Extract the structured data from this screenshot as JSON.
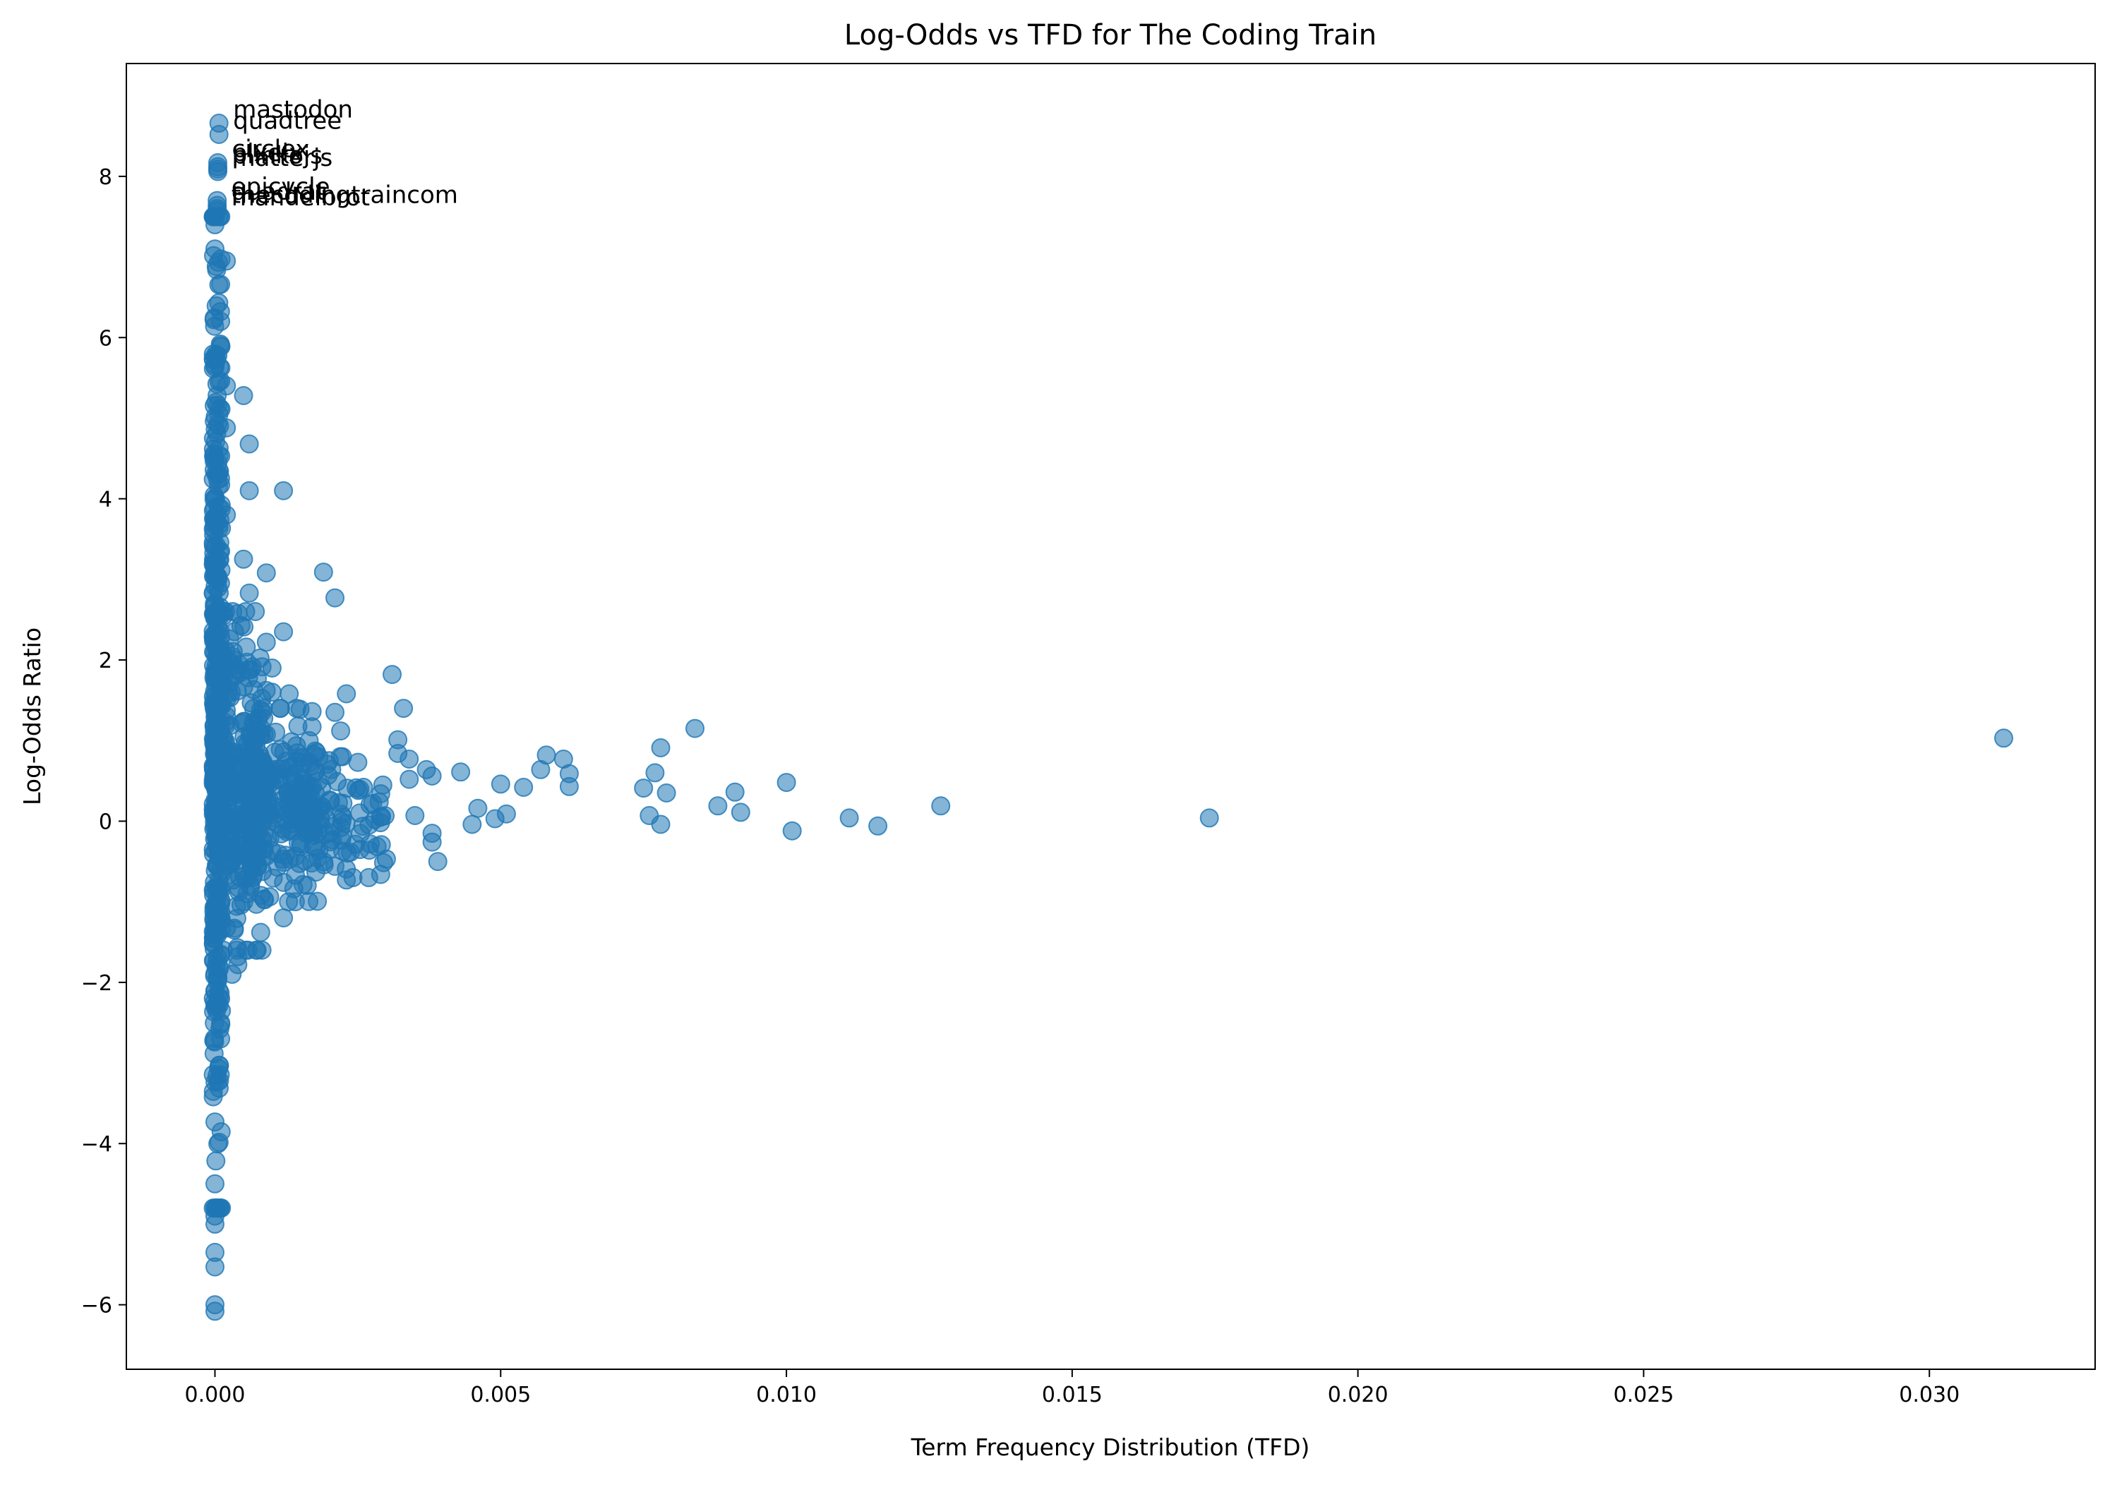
{
  "chart_data": {
    "type": "scatter",
    "title": "Log-Odds vs TFD for The Coding Train",
    "xlabel": "Term Frequency Distribution (TFD)",
    "ylabel": "Log-Odds Ratio",
    "xlim": [
      -0.00155,
      0.0329
    ],
    "ylim": [
      -6.8,
      9.4
    ],
    "xticks": [
      0.0,
      0.005,
      0.01,
      0.015,
      0.02,
      0.025,
      0.03
    ],
    "xtick_labels": [
      "0.000",
      "0.005",
      "0.010",
      "0.015",
      "0.020",
      "0.025",
      "0.030"
    ],
    "yticks": [
      -6,
      -4,
      -2,
      0,
      2,
      4,
      6,
      8
    ],
    "ytick_labels": [
      "−6",
      "−4",
      "−2",
      "0",
      "2",
      "4",
      "6",
      "8"
    ],
    "grid": false,
    "marker_color": "#1f77b4",
    "marker_alpha": 0.55,
    "annotations": [
      {
        "text": "mastodon",
        "x": 7e-05,
        "y": 8.66
      },
      {
        "text": "quadtree",
        "x": 7e-05,
        "y": 8.52
      },
      {
        "text": "circlex",
        "x": 5e-05,
        "y": 8.17
      },
      {
        "text": "pixelx",
        "x": 5e-05,
        "y": 8.12
      },
      {
        "text": "plinkojs",
        "x": 5e-05,
        "y": 8.09
      },
      {
        "text": "matterjs",
        "x": 5e-05,
        "y": 8.06
      },
      {
        "text": "epicycle",
        "x": 4e-05,
        "y": 7.7
      },
      {
        "text": "quadrat",
        "x": 4e-05,
        "y": 7.64
      },
      {
        "text": "thecodingtraincom",
        "x": 4e-05,
        "y": 7.6
      },
      {
        "text": "mandelbrot",
        "x": 4e-05,
        "y": 7.57
      }
    ],
    "notable_points": [
      {
        "x": 0.0313,
        "y": 1.03
      },
      {
        "x": 0.0174,
        "y": 0.04
      },
      {
        "x": 0.0127,
        "y": 0.19
      },
      {
        "x": 0.0116,
        "y": -0.06
      },
      {
        "x": 0.0111,
        "y": 0.04
      },
      {
        "x": 0.0101,
        "y": -0.12
      },
      {
        "x": 0.01,
        "y": 0.48
      },
      {
        "x": 0.0092,
        "y": 0.11
      },
      {
        "x": 0.0091,
        "y": 0.36
      },
      {
        "x": 0.0088,
        "y": 0.19
      },
      {
        "x": 0.0084,
        "y": 1.15
      },
      {
        "x": 0.0079,
        "y": 0.35
      },
      {
        "x": 0.0078,
        "y": -0.04
      },
      {
        "x": 0.0078,
        "y": 0.91
      },
      {
        "x": 0.0077,
        "y": 0.6
      },
      {
        "x": 0.0076,
        "y": 0.07
      },
      {
        "x": 0.0075,
        "y": 0.41
      },
      {
        "x": 0.0062,
        "y": 0.43
      },
      {
        "x": 0.0062,
        "y": 0.59
      },
      {
        "x": 0.0061,
        "y": 0.77
      },
      {
        "x": 0.0058,
        "y": 0.82
      },
      {
        "x": 0.0057,
        "y": 0.64
      },
      {
        "x": 0.0054,
        "y": 0.42
      },
      {
        "x": 0.0051,
        "y": 0.09
      },
      {
        "x": 0.005,
        "y": 0.46
      },
      {
        "x": 0.0049,
        "y": 0.03
      },
      {
        "x": 0.0046,
        "y": 0.16
      },
      {
        "x": 0.0045,
        "y": -0.04
      },
      {
        "x": 0.0043,
        "y": 0.61
      },
      {
        "x": 0.0039,
        "y": -0.5
      },
      {
        "x": 0.0038,
        "y": -0.26
      },
      {
        "x": 0.0038,
        "y": -0.15
      },
      {
        "x": 0.0038,
        "y": 0.56
      },
      {
        "x": 0.0037,
        "y": 0.64
      },
      {
        "x": 0.0035,
        "y": 0.07
      },
      {
        "x": 0.0034,
        "y": 0.77
      },
      {
        "x": 0.0034,
        "y": 0.52
      },
      {
        "x": 0.0033,
        "y": 1.4
      },
      {
        "x": 0.0032,
        "y": 1.01
      },
      {
        "x": 0.0032,
        "y": 0.84
      },
      {
        "x": 0.0031,
        "y": 1.82
      },
      {
        "x": 0.003,
        "y": -0.47
      },
      {
        "x": 0.0029,
        "y": 0.34
      },
      {
        "x": 0.0028,
        "y": 0.02
      },
      {
        "x": 0.0027,
        "y": -0.36
      },
      {
        "x": 0.0026,
        "y": 0.42
      },
      {
        "x": 0.0025,
        "y": 0.73
      },
      {
        "x": 0.0023,
        "y": 1.58
      },
      {
        "x": 0.0023,
        "y": -0.73
      },
      {
        "x": 0.0022,
        "y": 1.12
      },
      {
        "x": 0.0021,
        "y": 2.77
      },
      {
        "x": 0.0021,
        "y": 1.35
      },
      {
        "x": 0.0021,
        "y": -0.56
      },
      {
        "x": 0.002,
        "y": 0.75
      },
      {
        "x": 0.0019,
        "y": 3.09
      },
      {
        "x": 0.0018,
        "y": -0.46
      },
      {
        "x": 0.0017,
        "y": 1.36
      },
      {
        "x": 0.0017,
        "y": 1.17
      },
      {
        "x": 0.0015,
        "y": 0.79
      },
      {
        "x": 0.0013,
        "y": 1.58
      },
      {
        "x": 0.0012,
        "y": 2.35
      },
      {
        "x": 0.0012,
        "y": 4.1
      },
      {
        "x": 0.0012,
        "y": -1.2
      },
      {
        "x": 0.001,
        "y": 1.6
      },
      {
        "x": 0.001,
        "y": 1.9
      },
      {
        "x": 0.0009,
        "y": 3.08
      },
      {
        "x": 0.0009,
        "y": 2.22
      },
      {
        "x": 0.0008,
        "y": -1.38
      },
      {
        "x": 0.0006,
        "y": 4.68
      },
      {
        "x": 0.0006,
        "y": 4.1
      },
      {
        "x": 0.0006,
        "y": 2.83
      },
      {
        "x": 0.0005,
        "y": 5.28
      },
      {
        "x": 0.0005,
        "y": 3.25
      },
      {
        "x": 0.0004,
        "y": -1.68
      },
      {
        "x": 0.0004,
        "y": -1.78
      },
      {
        "x": 0.0003,
        "y": -1.9
      },
      {
        "x": 0.0002,
        "y": 6.95
      },
      {
        "x": 0.0002,
        "y": 4.88
      },
      {
        "x": 0.0002,
        "y": 3.8
      },
      {
        "x": 0.0002,
        "y": 5.4
      },
      {
        "x": 0.0001,
        "y": 6.66
      },
      {
        "x": 0.0001,
        "y": 6.2
      },
      {
        "x": 0.0001,
        "y": 5.9
      },
      {
        "x": 0.0001,
        "y": 5.46
      },
      {
        "x": 0.0001,
        "y": 4.53
      },
      {
        "x": 0.0001,
        "y": 3.35
      },
      {
        "x": 0.0001,
        "y": -2.5
      },
      {
        "x": 0.0001,
        "y": -2.7
      },
      {
        "x": 0.0001,
        "y": -2.2
      },
      {
        "x": 0.0,
        "y": -6.08
      },
      {
        "x": 0.0,
        "y": -6.0
      },
      {
        "x": 0.0,
        "y": -5.53
      },
      {
        "x": 0.0,
        "y": -5.35
      },
      {
        "x": 0.0,
        "y": -5.0
      },
      {
        "x": 0.0,
        "y": -4.9
      },
      {
        "x": 0.0,
        "y": -4.5
      },
      {
        "x": 0.0,
        "y": 7.4
      },
      {
        "x": 0.0,
        "y": 7.1
      }
    ],
    "dense_clusters": [
      {
        "x_min": -3e-05,
        "x_max": 0.00012,
        "y_min": -4.8,
        "y_max": 7.5,
        "count": 380
      },
      {
        "x_min": 0.0,
        "x_max": 0.0009,
        "y_min": -1.6,
        "y_max": 2.6,
        "count": 320
      },
      {
        "x_min": 0.0006,
        "x_max": 0.0018,
        "y_min": -1.0,
        "y_max": 1.4,
        "count": 200
      },
      {
        "x_min": 0.0015,
        "x_max": 0.003,
        "y_min": -0.7,
        "y_max": 0.8,
        "count": 90
      }
    ]
  }
}
